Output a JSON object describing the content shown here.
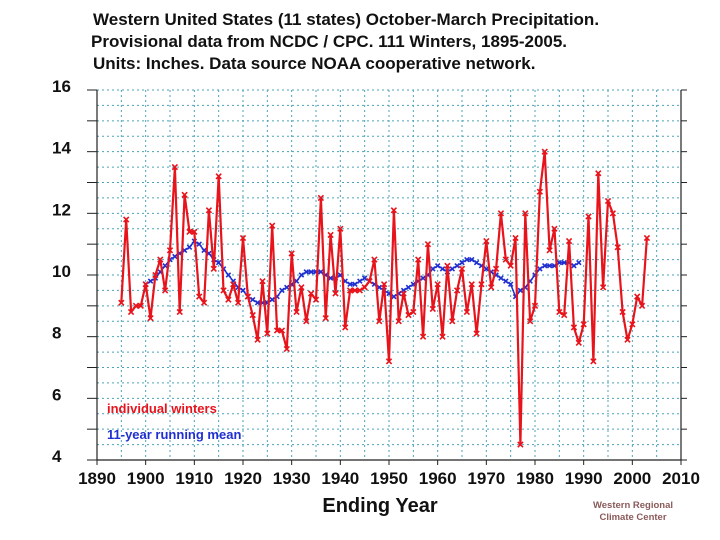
{
  "chart_data": {
    "type": "line",
    "title_lines": [
      "Western United States (11 states) October-March Precipitation.",
      "Provisional data from NCDC / CPC.   111 Winters, 1895-2005.",
      "Units:  Inches.  Data source NOAA  cooperative network."
    ],
    "xlabel": "Ending Year",
    "ylabel": "",
    "xlim": [
      1890,
      2010
    ],
    "ylim": [
      4,
      16
    ],
    "x_ticks": [
      "1890",
      "1900",
      "1910",
      "1920",
      "1930",
      "1940",
      "1950",
      "1960",
      "1970",
      "1980",
      "1990",
      "2000",
      "2010"
    ],
    "y_ticks": [
      "16",
      "14",
      "12",
      "10",
      "8",
      "6",
      "4"
    ],
    "grid": true,
    "legend_position": "bottom-left",
    "series": [
      {
        "name": "individual winters",
        "color": "#e8141c",
        "x_start": 1895,
        "values": [
          9.1,
          11.8,
          8.8,
          9.0,
          9.0,
          9.7,
          8.6,
          10.0,
          10.5,
          9.5,
          10.8,
          13.5,
          8.8,
          12.6,
          11.4,
          11.4,
          9.3,
          9.1,
          12.1,
          10.2,
          13.2,
          9.5,
          9.2,
          9.7,
          9.1,
          11.2,
          9.3,
          8.7,
          7.9,
          9.8,
          8.1,
          11.6,
          8.2,
          8.2,
          7.6,
          10.7,
          8.8,
          9.6,
          8.5,
          9.4,
          9.2,
          12.5,
          8.6,
          11.3,
          9.4,
          11.5,
          8.3,
          9.5,
          9.5,
          9.5,
          9.6,
          9.8,
          10.5,
          8.5,
          9.7,
          7.2,
          12.1,
          8.5,
          9.4,
          8.7,
          8.8,
          10.5,
          8.0,
          11.0,
          8.9,
          9.7,
          8.0,
          10.3,
          8.5,
          9.5,
          10.2,
          8.8,
          9.7,
          8.1,
          9.7,
          11.1,
          9.6,
          10.2,
          12.0,
          10.5,
          10.3,
          11.2,
          4.5,
          12.0,
          8.5,
          9.0,
          12.7,
          14.0,
          10.8,
          11.5,
          8.8,
          8.7,
          11.1,
          8.3,
          7.8,
          8.4,
          11.9,
          7.2,
          13.3,
          9.6,
          12.4,
          12.0,
          10.9,
          8.8,
          7.9,
          8.4,
          9.3,
          9.0,
          11.2
        ]
      },
      {
        "name": "11-year running mean",
        "color": "#1f2fd0",
        "x_start": 1900,
        "values": [
          9.7,
          9.8,
          9.9,
          10.1,
          10.3,
          10.5,
          10.6,
          10.7,
          10.8,
          10.9,
          11.1,
          11.0,
          10.8,
          10.7,
          10.5,
          10.4,
          10.2,
          10.0,
          9.8,
          9.6,
          9.5,
          9.3,
          9.2,
          9.1,
          9.1,
          9.1,
          9.2,
          9.3,
          9.5,
          9.6,
          9.7,
          9.8,
          10.0,
          10.1,
          10.1,
          10.1,
          10.1,
          10.0,
          9.9,
          9.9,
          10.0,
          9.8,
          9.7,
          9.7,
          9.8,
          9.9,
          9.8,
          9.7,
          9.6,
          9.5,
          9.4,
          9.3,
          9.4,
          9.5,
          9.6,
          9.7,
          9.8,
          9.9,
          10.0,
          10.2,
          10.3,
          10.2,
          10.1,
          10.2,
          10.3,
          10.4,
          10.5,
          10.5,
          10.4,
          10.3,
          10.2,
          10.1,
          10.0,
          9.9,
          9.8,
          9.7,
          9.3,
          9.5,
          9.6,
          9.8,
          10.0,
          10.2,
          10.3,
          10.3,
          10.3,
          10.4,
          10.4,
          10.4,
          10.3,
          10.4
        ]
      }
    ],
    "attribution_lines": [
      "Western Regional",
      "Climate Center"
    ]
  }
}
